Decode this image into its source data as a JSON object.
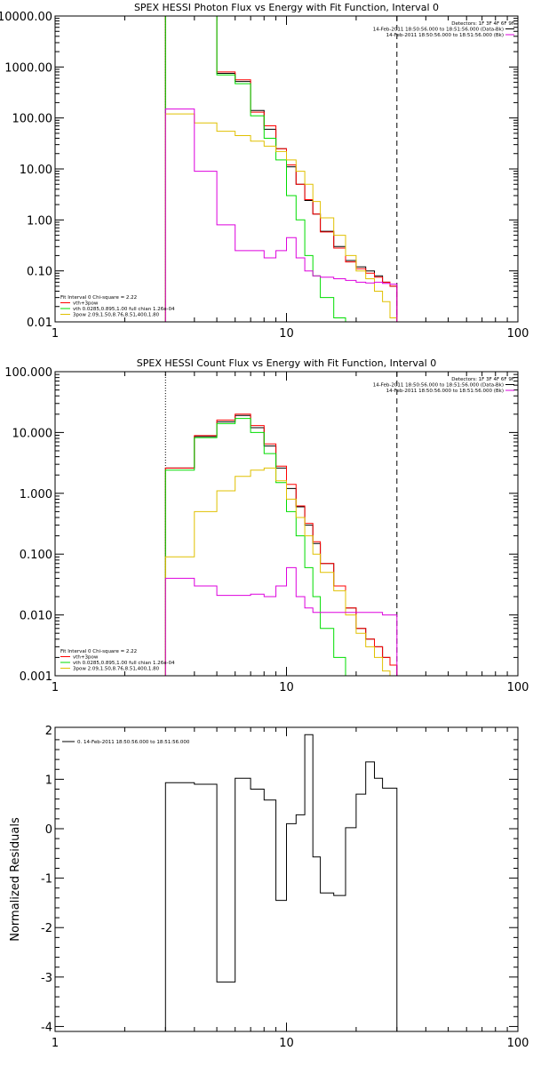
{
  "chart_data": [
    {
      "type": "line",
      "title": "SPEX HESSI Photon Flux vs Energy with Fit Function, Interval 0",
      "xlabel": "",
      "ylabel": "",
      "xscale": "log",
      "yscale": "log",
      "xlim": [
        1,
        100
      ],
      "ylim": [
        0.01,
        10000
      ],
      "xticks": [
        1,
        10,
        100
      ],
      "xtick_labels": [
        "1",
        "10",
        "100"
      ],
      "yticks": [
        0.01,
        0.1,
        1,
        10,
        100,
        1000,
        10000
      ],
      "ytick_labels": [
        "0.01",
        "0.10",
        "1.00",
        "10.00",
        "100.00",
        "1000.00",
        "10000.00"
      ],
      "vlines": [
        {
          "x": 3.0,
          "style": "dotted"
        },
        {
          "x": 30.0,
          "style": "dashed"
        }
      ],
      "legend_tr": [
        "Detectors: 1F 3F 4F 6F 9F",
        "14-Feb-2011 18:50:56.000 to 18:51:56.000 (Data-Bk)",
        "14-Feb-2011 18:50:56.000 to 18:51:56.000 (Bk)"
      ],
      "legend_bl": [
        "Fit Interval 0   Chi-square = 2.22",
        "vth+3pow",
        "vth 0.0285,0.895,1.00  full chian 1.26e-04",
        "3pow 2.09,1.50,8.76,8.51,400,1.80"
      ],
      "edges": [
        3,
        4,
        5,
        6,
        7,
        8,
        9,
        10,
        11,
        12,
        13,
        14,
        16,
        18,
        20,
        22,
        24,
        26,
        28,
        30
      ],
      "series": [
        {
          "name": "14-Feb-2011 18:50:56.000 to 18:51:56.000 (Data-Bk)",
          "color": "#000000",
          "values": [
            10000,
            10000,
            750,
            520,
            140,
            60,
            25,
            11,
            5,
            2.4,
            1.3,
            0.6,
            0.3,
            0.16,
            0.12,
            0.1,
            0.08,
            0.06,
            0.05
          ]
        },
        {
          "label": "vth+3pow",
          "color": "#ff0000",
          "values": [
            10000,
            10000,
            800,
            560,
            130,
            70,
            25,
            12,
            5,
            2.5,
            1.3,
            0.58,
            0.28,
            0.15,
            0.11,
            0.09,
            0.075,
            0.06,
            0.05
          ]
        },
        {
          "label": "vth",
          "color": "#00dd00",
          "values": [
            10000,
            10000,
            700,
            470,
            110,
            40,
            15,
            3,
            1,
            0.2,
            0.08,
            0.03,
            0.012,
            0.0,
            0.0,
            0.0,
            0.0,
            0.0,
            0.0
          ]
        },
        {
          "label": "3pow",
          "color": "#e0c000",
          "values": [
            120,
            80,
            55,
            45,
            35,
            28,
            22,
            15,
            9,
            5,
            2.3,
            1.1,
            0.5,
            0.2,
            0.1,
            0.07,
            0.04,
            0.025,
            0.012
          ]
        },
        {
          "name": "14-Feb-2011 18:50:56.000 to 18:51:56.000 (Bk)",
          "color": "#dd00dd",
          "values": [
            150,
            9,
            0.8,
            0.25,
            0.25,
            0.18,
            0.25,
            0.45,
            0.18,
            0.1,
            0.08,
            0.075,
            0.07,
            0.065,
            0.06,
            0.058,
            0.06,
            0.057,
            0.055
          ]
        }
      ]
    },
    {
      "type": "line",
      "title": "SPEX HESSI Count Flux vs Energy with Fit Function, Interval 0",
      "xlabel": "",
      "ylabel": "",
      "xscale": "log",
      "yscale": "log",
      "xlim": [
        1,
        100
      ],
      "ylim": [
        0.001,
        100
      ],
      "xticks": [
        1,
        10,
        100
      ],
      "xtick_labels": [
        "1",
        "10",
        "100"
      ],
      "yticks": [
        0.001,
        0.01,
        0.1,
        1,
        10,
        100
      ],
      "ytick_labels": [
        "0.001",
        "0.010",
        "0.100",
        "1.000",
        "10.000",
        "100.000"
      ],
      "vlines": [
        {
          "x": 3.0,
          "style": "dotted"
        },
        {
          "x": 30.0,
          "style": "dashed"
        }
      ],
      "legend_tr": [
        "Detectors: 1F 3F 4F 6F 9F",
        "14-Feb-2011 18:50:56.000 to 18:51:56.000 (Data-Bk)",
        "14-Feb-2011 18:50:56.000 to 18:51:56.000 (Bk)"
      ],
      "legend_bl": [
        "Fit Interval 0   Chi-square = 2.22",
        "vth+3pow",
        "vth 0.0285,0.895,1.00  full chian 1.26e-04",
        "3pow 2.09,1.50,8.76,8.51,400,1.80"
      ],
      "edges": [
        3,
        4,
        5,
        6,
        7,
        8,
        9,
        10,
        11,
        12,
        13,
        14,
        16,
        18,
        20,
        22,
        24,
        26,
        28,
        30
      ],
      "series": [
        {
          "name": "14-Feb-2011 18:50:56.000 to 18:51:56.000 (Data-Bk)",
          "color": "#000000",
          "values": [
            2.6,
            8.6,
            15,
            19,
            12,
            6,
            2.6,
            1.2,
            0.6,
            0.3,
            0.15,
            0.07,
            0.03,
            0.013,
            0.006,
            0.004,
            0.003,
            0.002,
            0.0015
          ]
        },
        {
          "label": "vth+3pow",
          "color": "#ff0000",
          "values": [
            2.6,
            8.9,
            16,
            20,
            13,
            6.5,
            2.8,
            1.4,
            0.62,
            0.32,
            0.16,
            0.07,
            0.03,
            0.013,
            0.006,
            0.004,
            0.003,
            0.002,
            0.0015
          ]
        },
        {
          "label": "vth",
          "color": "#00dd00",
          "values": [
            2.4,
            8.2,
            14,
            17,
            10,
            4.5,
            1.5,
            0.5,
            0.2,
            0.06,
            0.02,
            0.006,
            0.002,
            0.001,
            0.0,
            0.0,
            0.0,
            0.0,
            0.0
          ]
        },
        {
          "label": "3pow",
          "color": "#e0c000",
          "values": [
            0.09,
            0.5,
            1.1,
            1.9,
            2.4,
            2.6,
            1.6,
            0.8,
            0.4,
            0.2,
            0.1,
            0.05,
            0.025,
            0.01,
            0.005,
            0.003,
            0.002,
            0.0012,
            0.0007
          ]
        },
        {
          "name": "14-Feb-2011 18:50:56.000 to 18:51:56.000 (Bk)",
          "color": "#dd00dd",
          "values": [
            0.04,
            0.03,
            0.021,
            0.021,
            0.022,
            0.02,
            0.03,
            0.06,
            0.02,
            0.013,
            0.011,
            0.011,
            0.011,
            0.011,
            0.011,
            0.011,
            0.011,
            0.01,
            0.01
          ]
        }
      ]
    },
    {
      "type": "line",
      "title": "",
      "xlabel": "",
      "ylabel": "Normalized Residuals",
      "xscale": "log",
      "yscale": "linear",
      "xlim": [
        1,
        100
      ],
      "ylim": [
        -4.1,
        2.05
      ],
      "xticks": [
        1,
        10,
        100
      ],
      "xtick_labels": [
        "1",
        "10",
        "100"
      ],
      "yticks": [
        -4,
        -3,
        -2,
        -1,
        0,
        1,
        2
      ],
      "ytick_labels": [
        "-4",
        "-3",
        "-2",
        "-1",
        "0",
        "1",
        "2"
      ],
      "legend_tl": [
        "0. 14-Feb-2011 18:50:56.000 to 18:51:56.000"
      ],
      "edges": [
        3,
        4,
        5,
        6,
        7,
        8,
        9,
        10,
        11,
        12,
        13,
        14,
        16,
        18,
        20,
        22,
        24,
        26,
        28,
        30
      ],
      "series": [
        {
          "name": "0. 14-Feb-2011 18:50:56.000 to 18:51:56.000",
          "color": "#000000",
          "values": [
            0.93,
            0.9,
            -3.1,
            1.02,
            0.8,
            0.58,
            -1.45,
            0.1,
            0.28,
            1.9,
            -0.57,
            -1.3,
            -1.35,
            0.02,
            0.7,
            1.35,
            1.02,
            0.82,
            0.82
          ]
        }
      ]
    }
  ]
}
